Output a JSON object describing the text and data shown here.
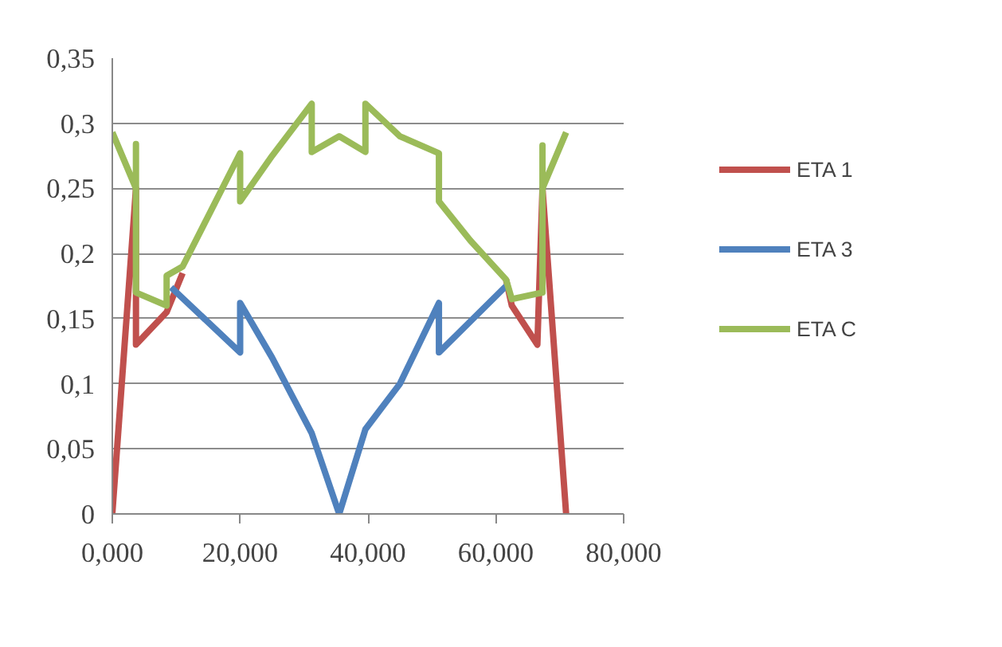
{
  "chart_data": {
    "type": "line",
    "xlim": [
      0,
      80
    ],
    "ylim": [
      0,
      0.35
    ],
    "xticks": [
      {
        "value": 0,
        "label": "0,000"
      },
      {
        "value": 20,
        "label": "20,000"
      },
      {
        "value": 40,
        "label": "40,000"
      },
      {
        "value": 60,
        "label": "60,000"
      },
      {
        "value": 80,
        "label": "80,000"
      }
    ],
    "yticks": [
      {
        "value": 0,
        "label": "0"
      },
      {
        "value": 0.05,
        "label": "0,05"
      },
      {
        "value": 0.1,
        "label": "0,1"
      },
      {
        "value": 0.15,
        "label": "0,15"
      },
      {
        "value": 0.2,
        "label": "0,2"
      },
      {
        "value": 0.25,
        "label": "0,25"
      },
      {
        "value": 0.3,
        "label": "0,3"
      },
      {
        "value": 0.35,
        "label": "0,35"
      }
    ],
    "grid": "y",
    "legend": "right",
    "marker": "none",
    "line_style": "solid",
    "series": [
      {
        "name": "ETA 1",
        "color": "#c0504d",
        "x": [
          0,
          3.7,
          3.7,
          8.5,
          11,
          36,
          61.6,
          62.5,
          66.5,
          67.3,
          71
        ],
        "values": [
          0,
          0.25,
          0.13,
          0.155,
          0.185,
          null,
          0.18,
          0.16,
          0.13,
          0.25,
          0
        ]
      },
      {
        "name": "ETA 3",
        "color": "#4f81bd",
        "x": [
          9.2,
          20,
          20,
          25,
          31.2,
          35.5,
          39.6,
          45,
          51.1,
          51.1,
          61.6
        ],
        "values": [
          0.174,
          0.124,
          0.162,
          0.12,
          0.062,
          0,
          0.065,
          0.1,
          0.162,
          0.124,
          0.175
        ]
      },
      {
        "name": "ETA C",
        "color": "#9bbb59",
        "x": [
          0,
          3.7,
          3.7,
          3.7,
          8.5,
          8.5,
          11,
          20,
          20,
          25,
          31.2,
          31.2,
          35.5,
          39.6,
          39.6,
          45,
          51.1,
          51.1,
          56,
          61.6,
          62.5,
          67.3,
          67.3,
          67.3,
          71
        ],
        "values": [
          0.293,
          0.25,
          0.284,
          0.17,
          0.16,
          0.183,
          0.19,
          0.277,
          0.24,
          0.275,
          0.315,
          0.278,
          0.29,
          0.278,
          0.315,
          0.29,
          0.277,
          0.24,
          0.21,
          0.18,
          0.165,
          0.17,
          0.283,
          0.25,
          0.293
        ]
      }
    ]
  }
}
